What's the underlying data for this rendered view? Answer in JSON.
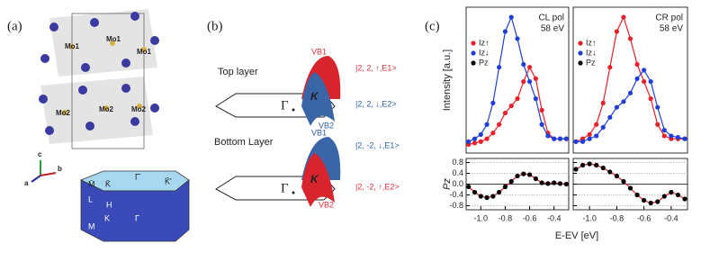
{
  "panel_a": {
    "label": "(a)",
    "atoms": [
      "Mo1",
      "Mo1",
      "Mo1",
      "Mo2",
      "Mo2",
      "Mo2"
    ],
    "axes": [
      "c",
      "a",
      "b"
    ],
    "bz_points": [
      "M̄",
      "K̄",
      "Γ̄",
      "K̄'",
      "L",
      "H",
      "M",
      "K",
      "Γ"
    ]
  },
  "panel_b": {
    "label": "(b)",
    "top_layer": "Top layer",
    "bottom_layer": "Bottom Layer",
    "gamma": [
      "Γ",
      "Γ"
    ],
    "valley": [
      "K",
      "K"
    ],
    "top_bands": [
      "VB1",
      "VB2"
    ],
    "bottom_bands": [
      "VB1",
      "VB2"
    ],
    "top_states": [
      "|2, 2, ↑,E1>",
      "|2, 2, ↓,E2>"
    ],
    "bottom_states": [
      "|2, -2, ↓,E1>",
      "|2, -2, ↑,E2>"
    ]
  },
  "panel_c": {
    "label": "(c)"
  },
  "chart_data": [
    {
      "type": "line",
      "title": "CL pol",
      "subtitle": "58 eV",
      "ylabel": "Intensity [a.u.]",
      "xlim": [
        -1.12,
        -0.28
      ],
      "ylim": [
        0,
        1.02
      ],
      "x": [
        -1.1,
        -1.05,
        -1.0,
        -0.95,
        -0.9,
        -0.85,
        -0.8,
        -0.75,
        -0.7,
        -0.65,
        -0.6,
        -0.55,
        -0.5,
        -0.45,
        -0.4,
        -0.35,
        -0.3
      ],
      "series": [
        {
          "name": "Iz↑",
          "color": "#e8202a",
          "values": [
            0.06,
            0.07,
            0.08,
            0.1,
            0.14,
            0.2,
            0.28,
            0.33,
            0.38,
            0.5,
            0.6,
            0.52,
            0.3,
            0.14,
            0.1,
            0.1,
            0.1
          ]
        },
        {
          "name": "Iz↓",
          "color": "#1f3fd8",
          "values": [
            0.08,
            0.1,
            0.13,
            0.2,
            0.35,
            0.6,
            0.85,
            0.95,
            0.8,
            0.62,
            0.5,
            0.38,
            0.2,
            0.12,
            0.1,
            0.1,
            0.1
          ]
        }
      ]
    },
    {
      "type": "line",
      "title": "CR pol",
      "subtitle": "58 eV",
      "xlim": [
        -1.12,
        -0.28
      ],
      "ylim": [
        0,
        1.02
      ],
      "x": [
        -1.1,
        -1.05,
        -1.0,
        -0.95,
        -0.9,
        -0.85,
        -0.8,
        -0.75,
        -0.7,
        -0.65,
        -0.6,
        -0.55,
        -0.5,
        -0.45,
        -0.4,
        -0.35,
        -0.3
      ],
      "series": [
        {
          "name": "Iz↑",
          "color": "#e8202a",
          "values": [
            0.08,
            0.1,
            0.13,
            0.2,
            0.35,
            0.6,
            0.85,
            0.95,
            0.8,
            0.62,
            0.5,
            0.38,
            0.2,
            0.12,
            0.1,
            0.1,
            0.1
          ]
        },
        {
          "name": "Iz↓",
          "color": "#1f3fd8",
          "values": [
            0.08,
            0.08,
            0.1,
            0.12,
            0.18,
            0.25,
            0.32,
            0.36,
            0.42,
            0.52,
            0.58,
            0.5,
            0.32,
            0.16,
            0.12,
            0.11,
            0.1
          ]
        }
      ]
    },
    {
      "type": "line",
      "ylabel": "Pz",
      "xlabel": "E-EV [eV]",
      "xlim": [
        -1.12,
        -0.28
      ],
      "ylim": [
        -0.95,
        0.95
      ],
      "grid": true,
      "xticks": [
        {
          "value": -1.0,
          "label": "-1.0"
        },
        -0.8,
        -0.6,
        -0.4
      ],
      "yticks": [
        0.8,
        0.4,
        {
          "value": 0,
          "label": "0.0"
        },
        -0.4,
        -0.8
      ],
      "x": [
        -1.1,
        -1.05,
        -1.0,
        -0.95,
        -0.9,
        -0.85,
        -0.8,
        -0.75,
        -0.7,
        -0.65,
        -0.6,
        -0.55,
        -0.5,
        -0.45,
        -0.4,
        -0.35,
        -0.3
      ],
      "series": [
        {
          "name": "Pz",
          "color": "#000000",
          "line_color": "#e8202a",
          "values": [
            -0.1,
            -0.3,
            -0.45,
            -0.5,
            -0.45,
            -0.3,
            -0.1,
            0.1,
            0.3,
            0.38,
            0.35,
            0.2,
            0.05,
            0.02,
            0.05,
            0.02,
            0.0
          ]
        }
      ]
    },
    {
      "type": "line",
      "xlim": [
        -1.12,
        -0.28
      ],
      "ylim": [
        -0.95,
        0.95
      ],
      "grid": true,
      "xticks": [
        {
          "value": -1.0,
          "label": "-1.0"
        },
        -0.8,
        -0.6,
        -0.4
      ],
      "yticks": [
        0.8,
        0.4,
        0,
        -0.4,
        -0.8
      ],
      "ytick_labels": false,
      "x": [
        -1.1,
        -1.05,
        -1.0,
        -0.95,
        -0.9,
        -0.85,
        -0.8,
        -0.75,
        -0.7,
        -0.65,
        -0.6,
        -0.55,
        -0.5,
        -0.45,
        -0.4,
        -0.35,
        -0.3
      ],
      "series": [
        {
          "name": "Pz",
          "color": "#000000",
          "line_color": "#e8202a",
          "values": [
            0.55,
            0.7,
            0.75,
            0.7,
            0.6,
            0.45,
            0.3,
            0.1,
            -0.15,
            -0.4,
            -0.6,
            -0.7,
            -0.65,
            -0.45,
            -0.3,
            -0.4,
            -0.55
          ]
        }
      ]
    }
  ]
}
